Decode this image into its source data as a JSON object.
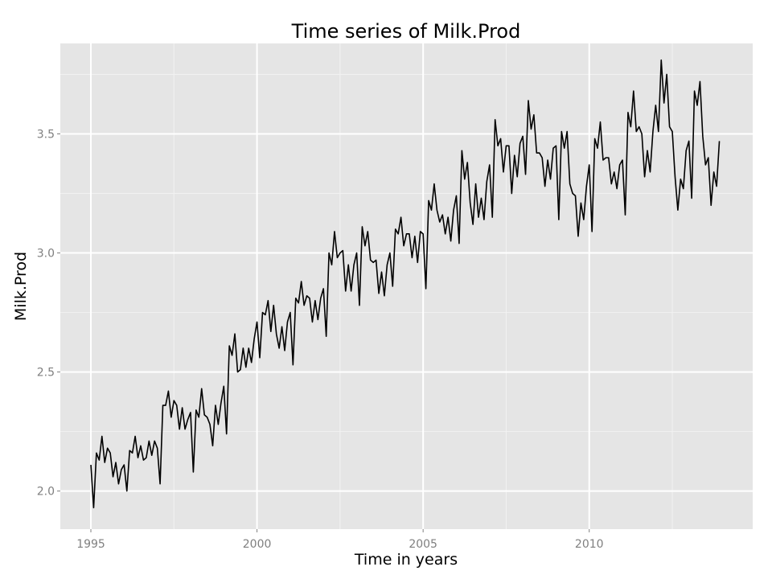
{
  "chart_data": {
    "type": "line",
    "title": "Time series of Milk.Prod",
    "xlabel": "Time in years",
    "ylabel": "Milk.Prod",
    "xlim": [
      1994.08,
      2014.92
    ],
    "ylim": [
      1.84,
      3.88
    ],
    "x_ticks": [
      1995,
      2000,
      2005,
      2010
    ],
    "x_tick_labels": [
      "1995",
      "2000",
      "2005",
      "2010"
    ],
    "y_ticks": [
      2.0,
      2.5,
      3.0,
      3.5
    ],
    "y_tick_labels": [
      "2.0",
      "2.5",
      "3.0",
      "3.5"
    ],
    "grid": true,
    "series": [
      {
        "x_start": "1995-01",
        "frequency": "monthly",
        "values": [
          2.11,
          1.93,
          2.16,
          2.13,
          2.23,
          2.12,
          2.18,
          2.16,
          2.06,
          2.12,
          2.03,
          2.09,
          2.11,
          2.0,
          2.17,
          2.16,
          2.23,
          2.14,
          2.19,
          2.13,
          2.14,
          2.21,
          2.15,
          2.21,
          2.18,
          2.03,
          2.36,
          2.36,
          2.42,
          2.31,
          2.38,
          2.36,
          2.26,
          2.35,
          2.26,
          2.3,
          2.33,
          2.08,
          2.34,
          2.31,
          2.43,
          2.32,
          2.31,
          2.28,
          2.19,
          2.36,
          2.28,
          2.37,
          2.44,
          2.24,
          2.61,
          2.57,
          2.66,
          2.5,
          2.51,
          2.6,
          2.52,
          2.6,
          2.54,
          2.64,
          2.71,
          2.56,
          2.75,
          2.74,
          2.8,
          2.67,
          2.78,
          2.66,
          2.6,
          2.69,
          2.59,
          2.71,
          2.75,
          2.53,
          2.81,
          2.79,
          2.88,
          2.78,
          2.82,
          2.81,
          2.71,
          2.8,
          2.72,
          2.81,
          2.85,
          2.65,
          3.0,
          2.95,
          3.09,
          2.98,
          3.0,
          3.01,
          2.84,
          2.95,
          2.84,
          2.95,
          3.0,
          2.78,
          3.11,
          3.03,
          3.09,
          2.97,
          2.96,
          2.97,
          2.83,
          2.92,
          2.82,
          2.95,
          3.0,
          2.86,
          3.1,
          3.08,
          3.15,
          3.03,
          3.08,
          3.08,
          2.98,
          3.07,
          2.96,
          3.09,
          3.08,
          2.85,
          3.22,
          3.18,
          3.29,
          3.18,
          3.13,
          3.16,
          3.08,
          3.15,
          3.05,
          3.18,
          3.24,
          3.04,
          3.43,
          3.31,
          3.38,
          3.21,
          3.12,
          3.29,
          3.15,
          3.23,
          3.14,
          3.3,
          3.37,
          3.15,
          3.56,
          3.45,
          3.48,
          3.34,
          3.45,
          3.45,
          3.25,
          3.41,
          3.32,
          3.46,
          3.49,
          3.33,
          3.64,
          3.52,
          3.58,
          3.42,
          3.42,
          3.4,
          3.28,
          3.39,
          3.31,
          3.44,
          3.45,
          3.14,
          3.51,
          3.44,
          3.51,
          3.29,
          3.25,
          3.24,
          3.07,
          3.21,
          3.14,
          3.28,
          3.37,
          3.09,
          3.48,
          3.44,
          3.55,
          3.39,
          3.4,
          3.4,
          3.29,
          3.34,
          3.27,
          3.37,
          3.39,
          3.16,
          3.59,
          3.53,
          3.68,
          3.51,
          3.53,
          3.5,
          3.32,
          3.43,
          3.34,
          3.51,
          3.62,
          3.51,
          3.81,
          3.63,
          3.75,
          3.53,
          3.51,
          3.32,
          3.18,
          3.31,
          3.27,
          3.43,
          3.47,
          3.23,
          3.68,
          3.62,
          3.72,
          3.49,
          3.37,
          3.4,
          3.2,
          3.34,
          3.28,
          3.47
        ]
      }
    ]
  },
  "colors": {
    "panel_background": "#e5e5e5",
    "grid_major": "#ffffff",
    "grid_minor": "#f2f2f2",
    "line": "#000000",
    "tick_label": "#7f7f7f"
  }
}
